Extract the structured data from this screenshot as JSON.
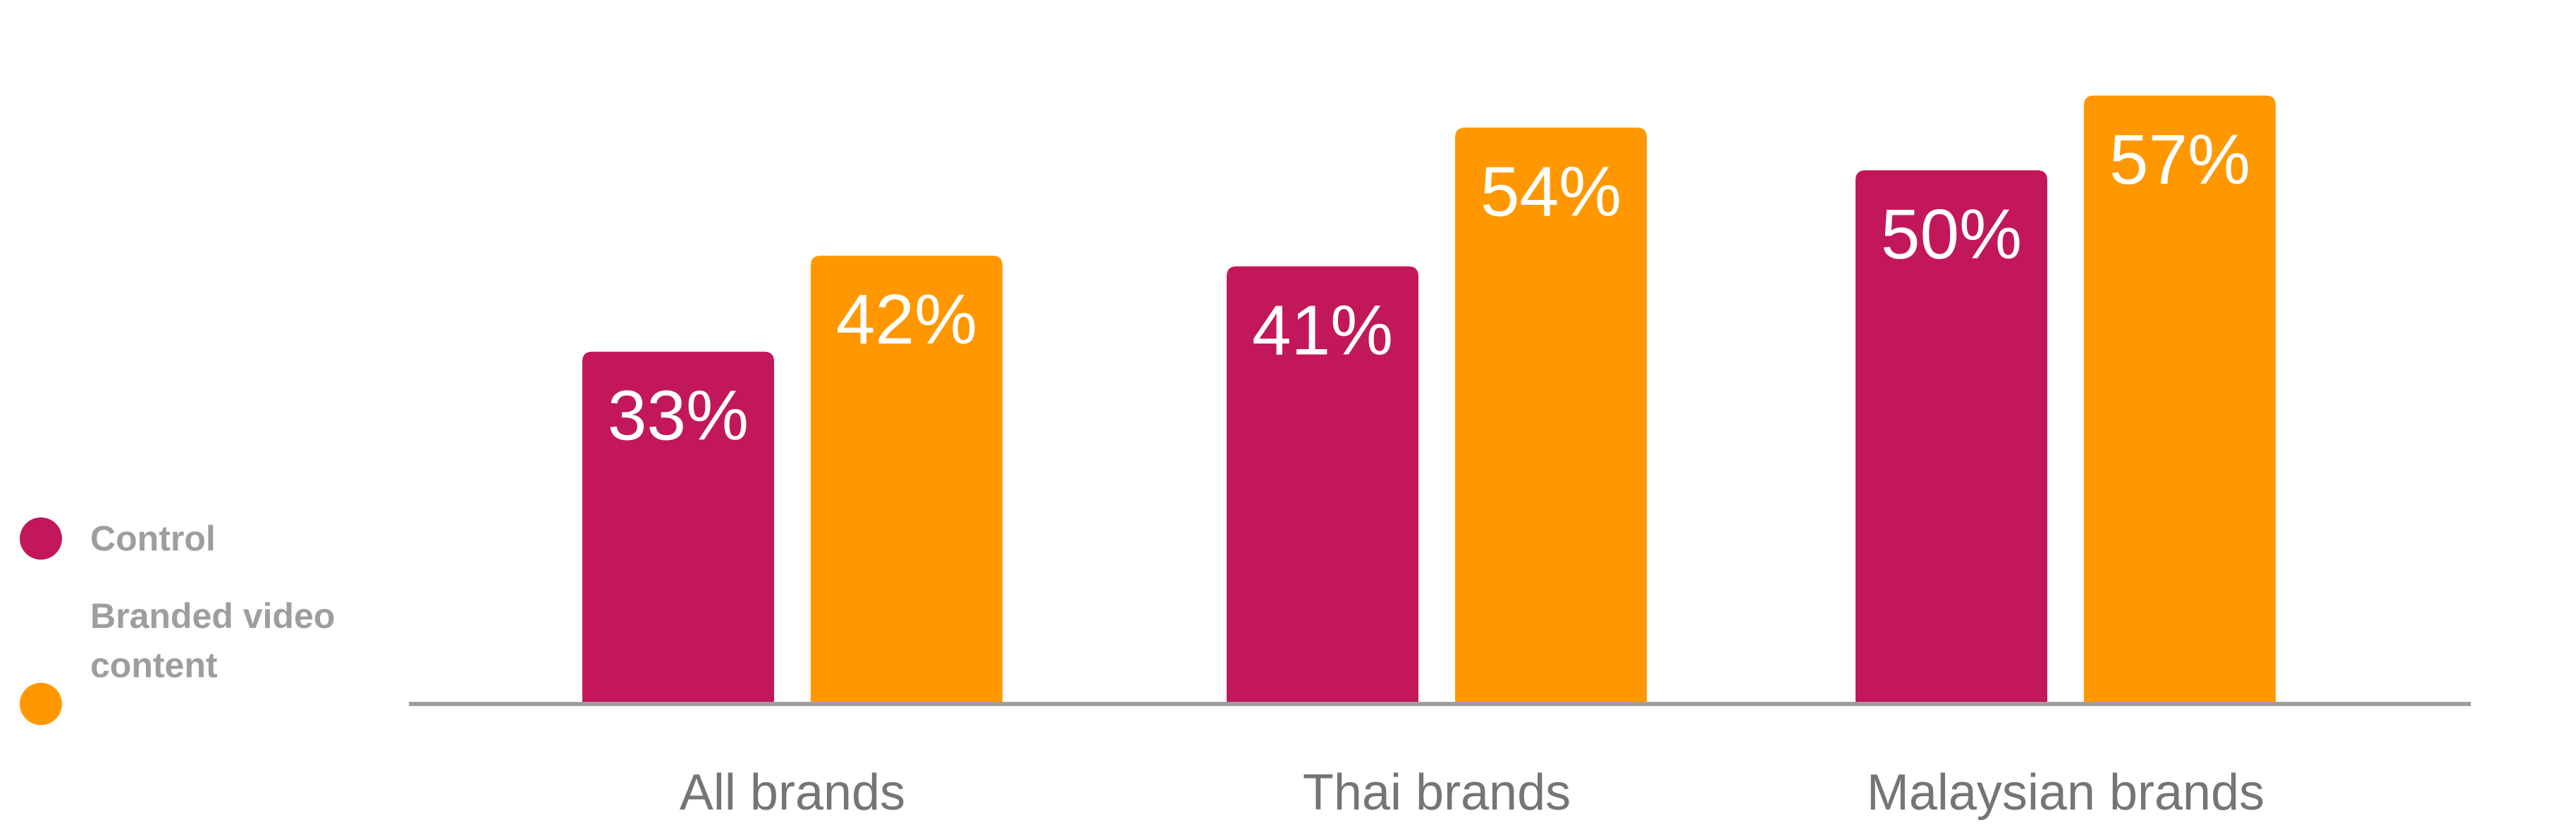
{
  "colors": {
    "control": "#c2185b",
    "branded": "#ff9800",
    "axis": "#9e9e9e",
    "legend_text": "#9e9e9e",
    "category_text": "#757575",
    "bar_label_text": "#ffffff"
  },
  "legend": {
    "items": [
      {
        "label": "Control"
      },
      {
        "label": "Branded video content"
      }
    ]
  },
  "chart_data": {
    "type": "bar",
    "categories": [
      "All brands",
      "Thai brands",
      "Malaysian brands"
    ],
    "series": [
      {
        "name": "Control",
        "values": [
          33,
          41,
          50
        ],
        "labels": [
          "33%",
          "41%",
          "50%"
        ]
      },
      {
        "name": "Branded video content",
        "values": [
          42,
          54,
          57
        ],
        "labels": [
          "42%",
          "54%",
          "57%"
        ]
      }
    ],
    "unit": "%",
    "ylim": [
      0,
      62
    ],
    "grid": false,
    "legend_position": "left",
    "xlabel": "",
    "ylabel": ""
  }
}
